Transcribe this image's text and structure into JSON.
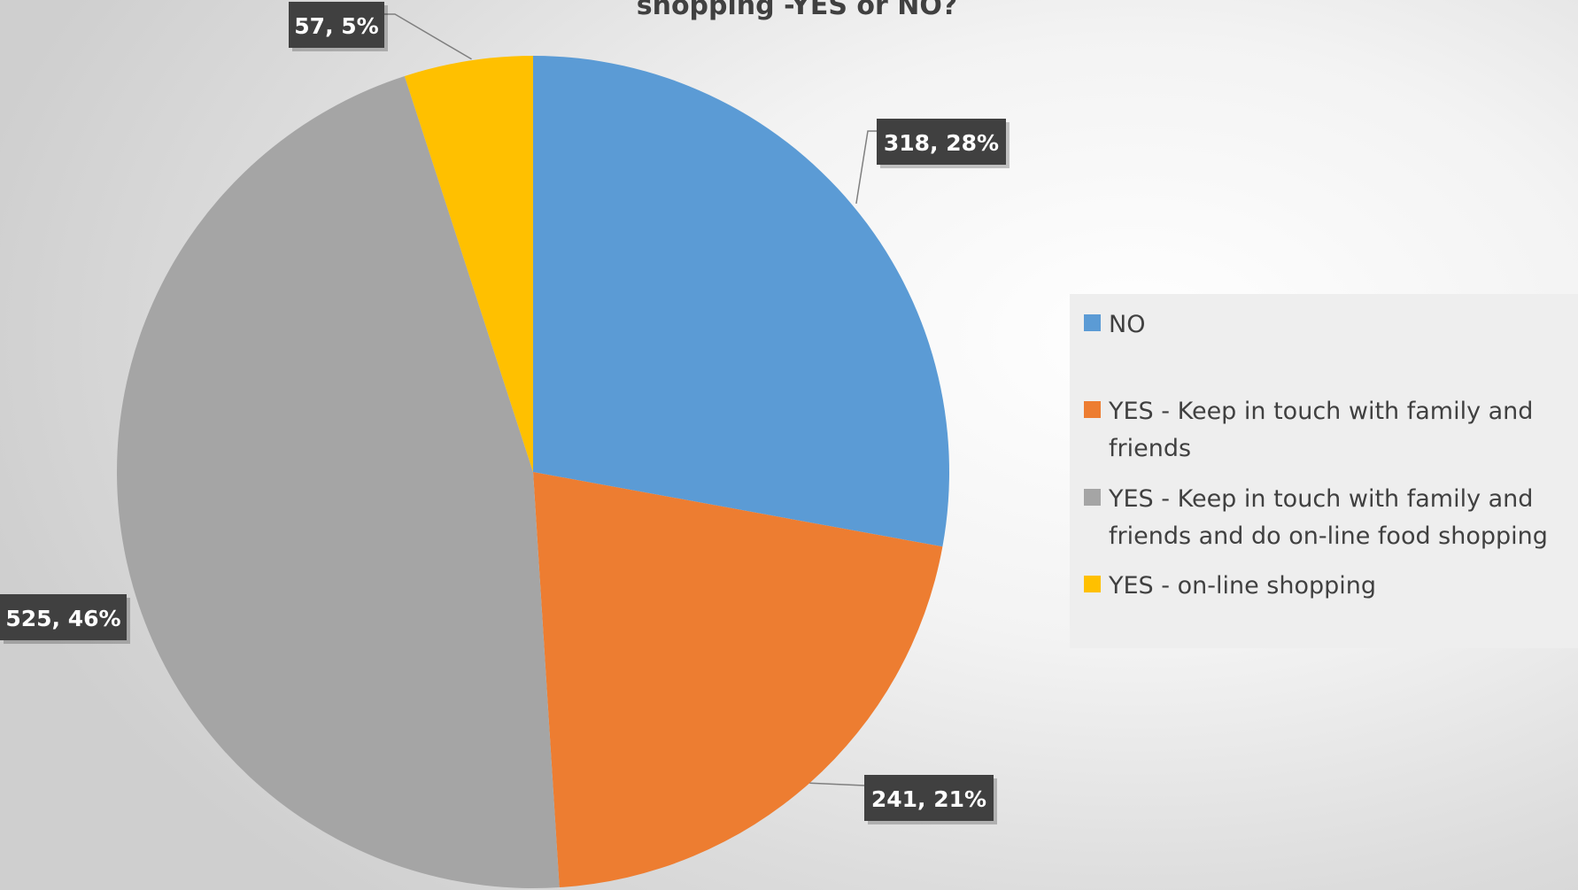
{
  "chart_data": {
    "type": "pie",
    "title": "shopping -YES or NO?",
    "categories": [
      "NO",
      "YES - Keep in touch with family and friends",
      "YES - Keep in touch with family and friends and do on-line food shopping",
      "YES - on-line shopping"
    ],
    "values": [
      318,
      241,
      525,
      57
    ],
    "percent_labels": [
      "28%",
      "21%",
      "46%",
      "5%"
    ],
    "data_labels": [
      "318, 28%",
      "241, 21%",
      "525, 46%",
      "57, 5%"
    ],
    "colors": [
      "#5b9bd5",
      "#ed7d31",
      "#a5a5a5",
      "#ffc000"
    ],
    "legend_position": "right"
  }
}
